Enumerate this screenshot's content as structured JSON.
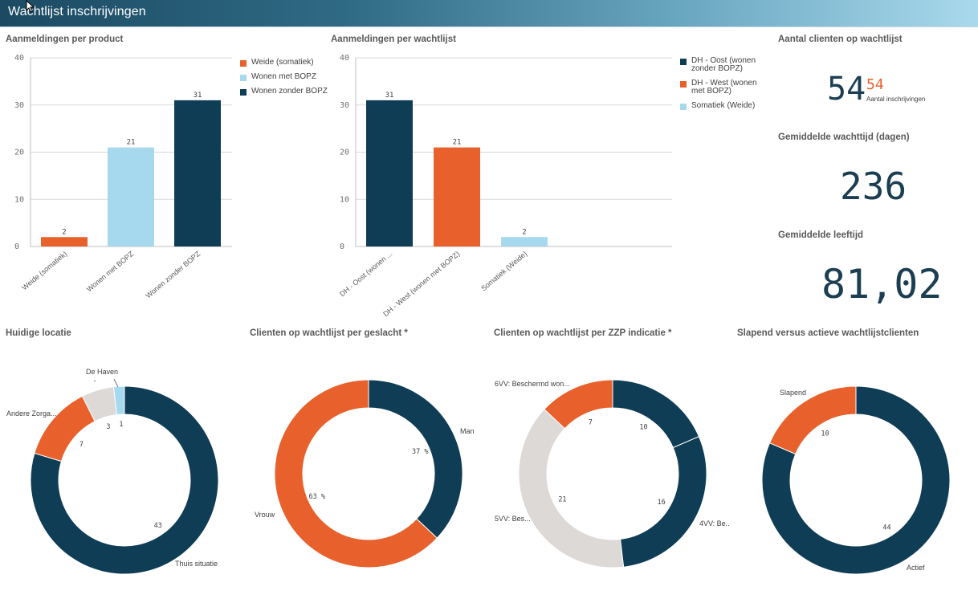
{
  "header": {
    "title": "Wachtlijst inschrijvingen"
  },
  "colors": {
    "dark": "#0f3d55",
    "orange": "#e8612c",
    "light_blue": "#a6d9ee",
    "light_grey": "#dcd9d7",
    "header_dark": "#1c4a63"
  },
  "panels": {
    "product": {
      "title": "Aanmeldingen per product"
    },
    "wachtlijst": {
      "title": "Aanmeldingen per wachtlijst"
    },
    "aantal": {
      "title": "Aantal clienten op wachtlijst",
      "value_big": "54",
      "value_small": "54",
      "value_small_label": "Aantal inschrijvingen"
    },
    "wachttijd": {
      "title": "Gemiddelde wachttijd (dagen)",
      "value": "236"
    },
    "leeftijd": {
      "title": "Gemiddelde leeftijd",
      "value": "81,02"
    },
    "locatie": {
      "title": "Huidige locatie"
    },
    "geslacht": {
      "title": "Clienten op wachtlijst per geslacht *"
    },
    "zzp": {
      "title": "Clienten op wachtlijst per ZZP indicatie *"
    },
    "slapend": {
      "title": "Slapend versus actieve wachtlijstclienten"
    }
  },
  "chart_data": [
    {
      "type": "bar",
      "title": "Aanmeldingen per product",
      "categories": [
        "Weide (somatiek)",
        "Wonen met BOPZ",
        "Wonen zonder BOPZ"
      ],
      "values": [
        2,
        21,
        31
      ],
      "colors": [
        "#e8612c",
        "#a6d9ee",
        "#0f3d55"
      ],
      "ylim": [
        0,
        40
      ],
      "yticks": [
        0,
        10,
        20,
        30,
        40
      ],
      "legend": [
        "Weide (somatiek)",
        "Wonen met BOPZ",
        "Wonen zonder BOPZ"
      ],
      "legend_position": "right",
      "grid": true
    },
    {
      "type": "bar",
      "title": "Aanmeldingen per wachtlijst",
      "categories": [
        "DH - Oost (wonen ...",
        "DH - West (wonen met BOPZ)",
        "Somatiek (Weide)"
      ],
      "values": [
        31,
        21,
        2
      ],
      "colors": [
        "#0f3d55",
        "#e8612c",
        "#a6d9ee"
      ],
      "ylim": [
        0,
        40
      ],
      "yticks": [
        0,
        10,
        20,
        30,
        40
      ],
      "legend": [
        "DH - Oost (wonen zonder BOPZ)",
        "DH - West (wonen met BOPZ)",
        "Somatiek (Weide)"
      ],
      "legend_position": "right",
      "grid": true
    },
    {
      "type": "pie",
      "title": "Huidige locatie",
      "labels": [
        "Thuis situatie",
        "Andere Zorga...",
        "-",
        "De Haven"
      ],
      "values": [
        43,
        7,
        3,
        1
      ],
      "value_labels": [
        "43",
        "7",
        "3",
        "1"
      ],
      "colors": [
        "#0f3d55",
        "#e8612c",
        "#dcd9d7",
        "#a6d9ee"
      ]
    },
    {
      "type": "pie",
      "title": "Clienten op wachtlijst per geslacht *",
      "labels": [
        "Man",
        "Vrouw"
      ],
      "values": [
        37,
        63
      ],
      "value_labels": [
        "37 %",
        "63 %"
      ],
      "colors": [
        "#0f3d55",
        "#e8612c"
      ]
    },
    {
      "type": "pie",
      "title": "Clienten op wachtlijst per ZZP indicatie *",
      "labels": [
        "",
        "4VV: Be...",
        "5VV: Bes...",
        "6VV: Beschermd won..."
      ],
      "values": [
        10,
        16,
        21,
        7
      ],
      "value_labels": [
        "10",
        "16",
        "21",
        "7"
      ],
      "colors": [
        "#0f3d55",
        "#0f3d55",
        "#dcd9d7",
        "#e8612c"
      ]
    },
    {
      "type": "pie",
      "title": "Slapend versus actieve wachtlijstclienten",
      "labels": [
        "Actief",
        "Slapend"
      ],
      "values": [
        44,
        10
      ],
      "value_labels": [
        "44",
        "10"
      ],
      "colors": [
        "#0f3d55",
        "#e8612c"
      ]
    }
  ]
}
